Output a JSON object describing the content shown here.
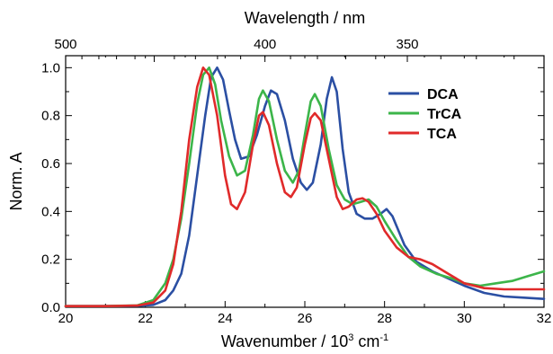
{
  "chart_data": {
    "type": "line",
    "title": "",
    "xlabel": {
      "prefix": "Wavenumber / 10",
      "exp1": "3",
      "mid": " cm",
      "exp2": "-1"
    },
    "x2label": "Wavelength / nm",
    "ylabel": "Norm. A",
    "xlim": [
      20,
      32
    ],
    "ylim": [
      0,
      1.05
    ],
    "xticks": [
      20,
      22,
      24,
      26,
      28,
      30,
      32
    ],
    "yticks": [
      "0.0",
      "0.2",
      "0.4",
      "0.6",
      "0.8",
      "1.0"
    ],
    "x2ticks": [
      {
        "label": "500",
        "nm": 500
      },
      {
        "label": "400",
        "nm": 400
      },
      {
        "label": "350",
        "nm": 350
      }
    ],
    "grid": false,
    "legend_position": "top-right",
    "series": [
      {
        "name": "DCA",
        "color": "#2b4fa3",
        "points": [
          [
            20,
            0.005
          ],
          [
            21,
            0.005
          ],
          [
            21.8,
            0.006
          ],
          [
            22.2,
            0.01
          ],
          [
            22.5,
            0.03
          ],
          [
            22.7,
            0.07
          ],
          [
            22.9,
            0.14
          ],
          [
            23.1,
            0.3
          ],
          [
            23.3,
            0.55
          ],
          [
            23.5,
            0.8
          ],
          [
            23.65,
            0.96
          ],
          [
            23.8,
            1.0
          ],
          [
            23.95,
            0.95
          ],
          [
            24.1,
            0.82
          ],
          [
            24.25,
            0.7
          ],
          [
            24.4,
            0.62
          ],
          [
            24.6,
            0.63
          ],
          [
            24.8,
            0.72
          ],
          [
            25.0,
            0.84
          ],
          [
            25.15,
            0.905
          ],
          [
            25.3,
            0.89
          ],
          [
            25.5,
            0.78
          ],
          [
            25.7,
            0.62
          ],
          [
            25.9,
            0.52
          ],
          [
            26.05,
            0.49
          ],
          [
            26.2,
            0.52
          ],
          [
            26.4,
            0.68
          ],
          [
            26.55,
            0.87
          ],
          [
            26.68,
            0.96
          ],
          [
            26.8,
            0.9
          ],
          [
            26.95,
            0.66
          ],
          [
            27.1,
            0.48
          ],
          [
            27.3,
            0.39
          ],
          [
            27.5,
            0.37
          ],
          [
            27.7,
            0.37
          ],
          [
            27.9,
            0.39
          ],
          [
            28.05,
            0.41
          ],
          [
            28.2,
            0.38
          ],
          [
            28.5,
            0.26
          ],
          [
            28.8,
            0.19
          ],
          [
            29.2,
            0.15
          ],
          [
            29.6,
            0.12
          ],
          [
            30.0,
            0.09
          ],
          [
            30.5,
            0.06
          ],
          [
            31.0,
            0.045
          ],
          [
            31.5,
            0.04
          ],
          [
            32,
            0.035
          ]
        ]
      },
      {
        "name": "TrCA",
        "color": "#3cb54a",
        "points": [
          [
            20,
            0.005
          ],
          [
            21,
            0.005
          ],
          [
            21.8,
            0.008
          ],
          [
            22.2,
            0.03
          ],
          [
            22.5,
            0.1
          ],
          [
            22.7,
            0.2
          ],
          [
            22.9,
            0.37
          ],
          [
            23.1,
            0.6
          ],
          [
            23.3,
            0.85
          ],
          [
            23.45,
            0.97
          ],
          [
            23.6,
            1.0
          ],
          [
            23.75,
            0.93
          ],
          [
            23.9,
            0.78
          ],
          [
            24.1,
            0.63
          ],
          [
            24.3,
            0.55
          ],
          [
            24.5,
            0.57
          ],
          [
            24.7,
            0.72
          ],
          [
            24.85,
            0.87
          ],
          [
            24.95,
            0.905
          ],
          [
            25.1,
            0.86
          ],
          [
            25.3,
            0.7
          ],
          [
            25.5,
            0.57
          ],
          [
            25.7,
            0.52
          ],
          [
            25.85,
            0.57
          ],
          [
            26.0,
            0.72
          ],
          [
            26.15,
            0.86
          ],
          [
            26.25,
            0.89
          ],
          [
            26.4,
            0.84
          ],
          [
            26.6,
            0.66
          ],
          [
            26.8,
            0.51
          ],
          [
            27.0,
            0.45
          ],
          [
            27.2,
            0.43
          ],
          [
            27.4,
            0.44
          ],
          [
            27.6,
            0.45
          ],
          [
            27.8,
            0.42
          ],
          [
            28.0,
            0.36
          ],
          [
            28.3,
            0.28
          ],
          [
            28.6,
            0.21
          ],
          [
            28.9,
            0.17
          ],
          [
            29.3,
            0.14
          ],
          [
            29.7,
            0.12
          ],
          [
            30.0,
            0.1
          ],
          [
            30.4,
            0.09
          ],
          [
            30.8,
            0.1
          ],
          [
            31.2,
            0.11
          ],
          [
            31.6,
            0.13
          ],
          [
            32,
            0.15
          ]
        ]
      },
      {
        "name": "TCA",
        "color": "#e02a2a",
        "points": [
          [
            20,
            0.005
          ],
          [
            21,
            0.005
          ],
          [
            21.8,
            0.007
          ],
          [
            22.2,
            0.02
          ],
          [
            22.5,
            0.07
          ],
          [
            22.7,
            0.18
          ],
          [
            22.9,
            0.4
          ],
          [
            23.1,
            0.7
          ],
          [
            23.3,
            0.92
          ],
          [
            23.45,
            1.0
          ],
          [
            23.6,
            0.97
          ],
          [
            23.8,
            0.8
          ],
          [
            24.0,
            0.55
          ],
          [
            24.15,
            0.43
          ],
          [
            24.3,
            0.41
          ],
          [
            24.5,
            0.48
          ],
          [
            24.7,
            0.68
          ],
          [
            24.85,
            0.8
          ],
          [
            24.95,
            0.815
          ],
          [
            25.1,
            0.76
          ],
          [
            25.3,
            0.6
          ],
          [
            25.5,
            0.48
          ],
          [
            25.65,
            0.46
          ],
          [
            25.8,
            0.5
          ],
          [
            26.0,
            0.68
          ],
          [
            26.15,
            0.79
          ],
          [
            26.25,
            0.81
          ],
          [
            26.4,
            0.78
          ],
          [
            26.6,
            0.62
          ],
          [
            26.8,
            0.46
          ],
          [
            26.95,
            0.41
          ],
          [
            27.1,
            0.42
          ],
          [
            27.3,
            0.45
          ],
          [
            27.45,
            0.455
          ],
          [
            27.6,
            0.44
          ],
          [
            27.8,
            0.39
          ],
          [
            28.0,
            0.32
          ],
          [
            28.3,
            0.25
          ],
          [
            28.6,
            0.21
          ],
          [
            28.9,
            0.2
          ],
          [
            29.2,
            0.18
          ],
          [
            29.6,
            0.14
          ],
          [
            30.0,
            0.1
          ],
          [
            30.5,
            0.08
          ],
          [
            31.0,
            0.075
          ],
          [
            31.5,
            0.075
          ],
          [
            32,
            0.075
          ]
        ]
      }
    ]
  }
}
